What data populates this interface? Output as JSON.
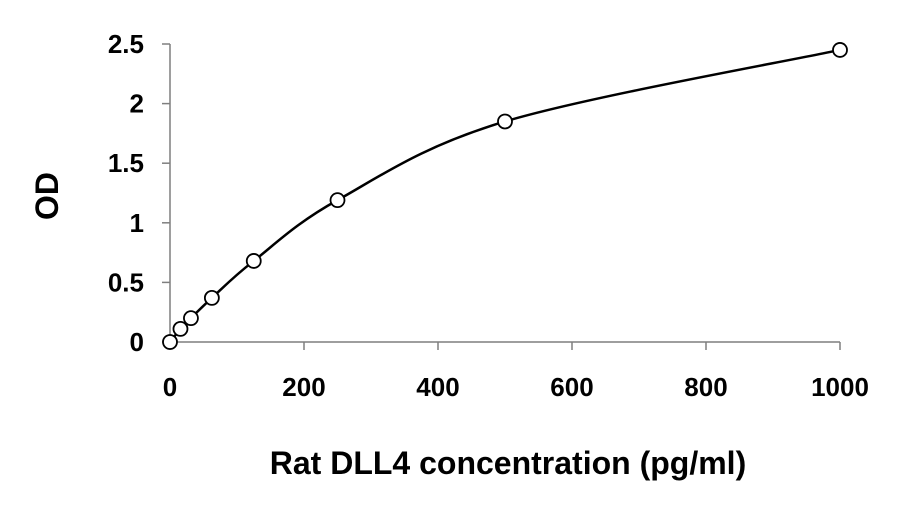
{
  "chart_data": {
    "type": "scatter",
    "title": "",
    "xlabel": "Rat DLL4 concentration (pg/ml)",
    "ylabel": "OD",
    "xlim": [
      0,
      1000
    ],
    "ylim": [
      0,
      2.5
    ],
    "x_ticks": [
      0,
      200,
      400,
      600,
      800,
      1000
    ],
    "y_ticks": [
      0,
      0.5,
      1,
      1.5,
      2,
      2.5
    ],
    "x_tick_labels": [
      "0",
      "200",
      "400",
      "600",
      "800",
      "1000"
    ],
    "y_tick_labels": [
      "0",
      "0.5",
      "1",
      "1.5",
      "2",
      "2.5"
    ],
    "grid": false,
    "legend": "none",
    "series": [
      {
        "marker": "open-circle",
        "fit_line": "smooth-curve",
        "color": "#000000",
        "x": [
          0,
          15.625,
          31.25,
          62.5,
          125,
          250,
          500,
          1000
        ],
        "y": [
          0.0,
          0.11,
          0.2,
          0.37,
          0.68,
          1.19,
          1.85,
          2.45
        ]
      }
    ]
  }
}
